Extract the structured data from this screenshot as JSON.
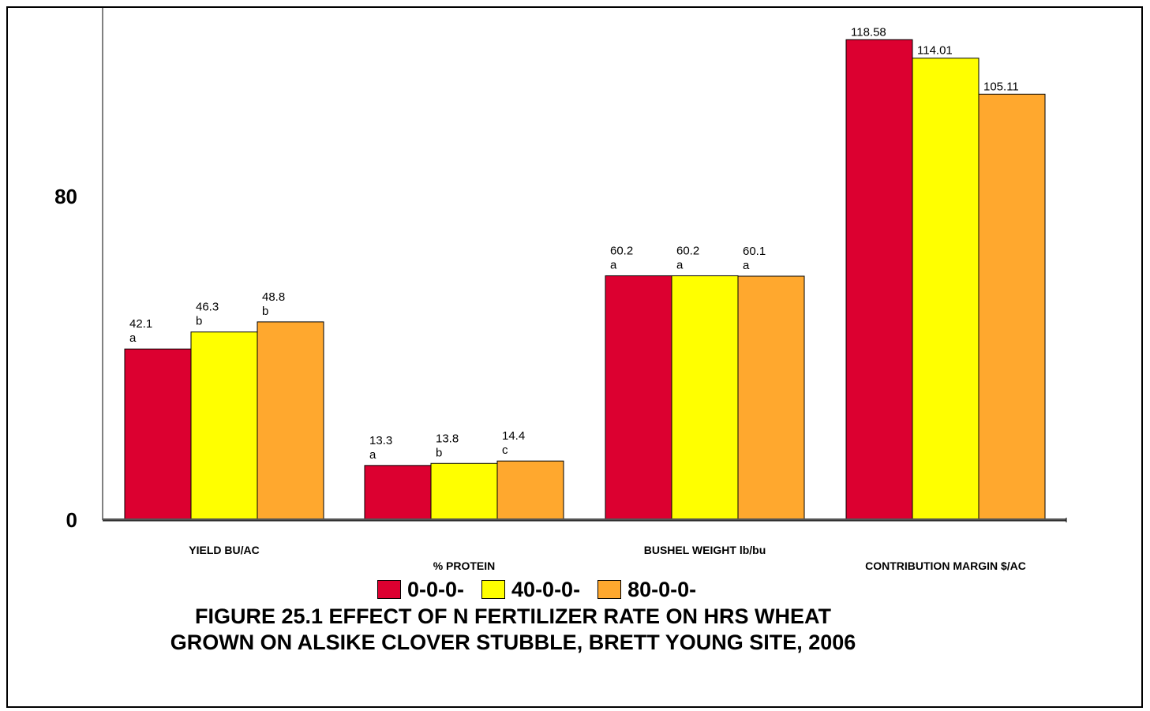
{
  "chart_data": {
    "type": "bar",
    "categories": [
      "YIELD BU/AC",
      "% PROTEIN",
      "BUSHEL WEIGHT lb/bu",
      "CONTRIBUTION MARGIN $/AC"
    ],
    "series": [
      {
        "name": "0-0-0-",
        "color": "#DC0030",
        "values": [
          42.1,
          13.3,
          60.2,
          118.58
        ],
        "labels": [
          [
            "42.1",
            "a"
          ],
          [
            "13.3",
            "a"
          ],
          [
            "60.2",
            "a"
          ],
          [
            "118.58",
            ""
          ]
        ]
      },
      {
        "name": "40-0-0-",
        "color": "#FFFF00",
        "values": [
          46.3,
          13.8,
          60.2,
          114.01
        ],
        "labels": [
          [
            "46.3",
            "b"
          ],
          [
            "13.8",
            "b"
          ],
          [
            "60.2",
            "a"
          ],
          [
            "114.01",
            ""
          ]
        ]
      },
      {
        "name": "80-0-0-",
        "color": "#FFA82E",
        "values": [
          48.8,
          14.4,
          60.1,
          105.11
        ],
        "labels": [
          [
            "48.8",
            "b"
          ],
          [
            "14.4",
            "c"
          ],
          [
            "60.1",
            "a"
          ],
          [
            "105.11",
            ""
          ]
        ]
      }
    ],
    "yticks": [
      "0",
      "80"
    ],
    "ylim": [
      0,
      120
    ],
    "legend_position": "bottom",
    "title_lines": [
      "FIGURE 25.1 EFFECT OF N FERTILIZER RATE ON HRS WHEAT",
      "GROWN ON ALSIKE CLOVER STUBBLE, BRETT YOUNG SITE, 2006"
    ]
  }
}
